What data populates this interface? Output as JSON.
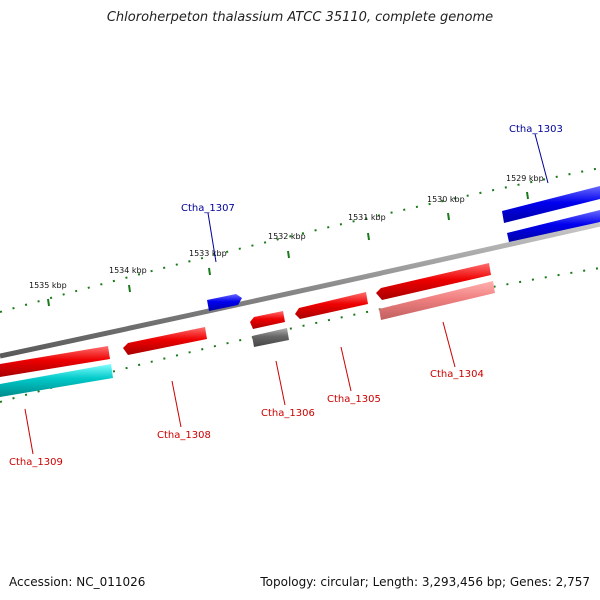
{
  "title": "Chloroherpeton thalassium ATCC 35110, complete genome",
  "footer": {
    "accession": "Accession: NC_011026",
    "summary": "Topology: circular; Length: 3,293,456 bp; Genes: 2,757"
  },
  "tick_labels": [
    "1529 kbp",
    "1530 kbp",
    "1531 kbp",
    "1532 kbp",
    "1533 kbp",
    "1534 kbp",
    "1535 kbp"
  ],
  "genes": [
    {
      "id": "Ctha_1303",
      "label": "Ctha_1303",
      "strand": "forward",
      "color": "#0000cc"
    },
    {
      "id": "Ctha_1304",
      "label": "Ctha_1304",
      "strand": "reverse",
      "color": "#cc0000"
    },
    {
      "id": "Ctha_1305",
      "label": "Ctha_1305",
      "strand": "reverse",
      "color": "#cc0000"
    },
    {
      "id": "Ctha_1306",
      "label": "Ctha_1306",
      "strand": "reverse",
      "color": "#cc0000"
    },
    {
      "id": "Ctha_1307",
      "label": "Ctha_1307",
      "strand": "forward",
      "color": "#0000cc"
    },
    {
      "id": "Ctha_1308",
      "label": "Ctha_1308",
      "strand": "reverse",
      "color": "#cc0000"
    },
    {
      "id": "Ctha_1309",
      "label": "Ctha_1309",
      "strand": "reverse",
      "color": "#cc0000"
    }
  ],
  "colors": {
    "forward_cds": "#0000ee",
    "reverse_cds": "#ee0000",
    "reverse_cds_light": "#f08080",
    "teal_feature": "#00c8c8",
    "gray_feature": "#666666",
    "backbone": "#888888",
    "ticks": "#1a7a1a",
    "forward_label": "#000099",
    "reverse_label": "#cc0000"
  }
}
